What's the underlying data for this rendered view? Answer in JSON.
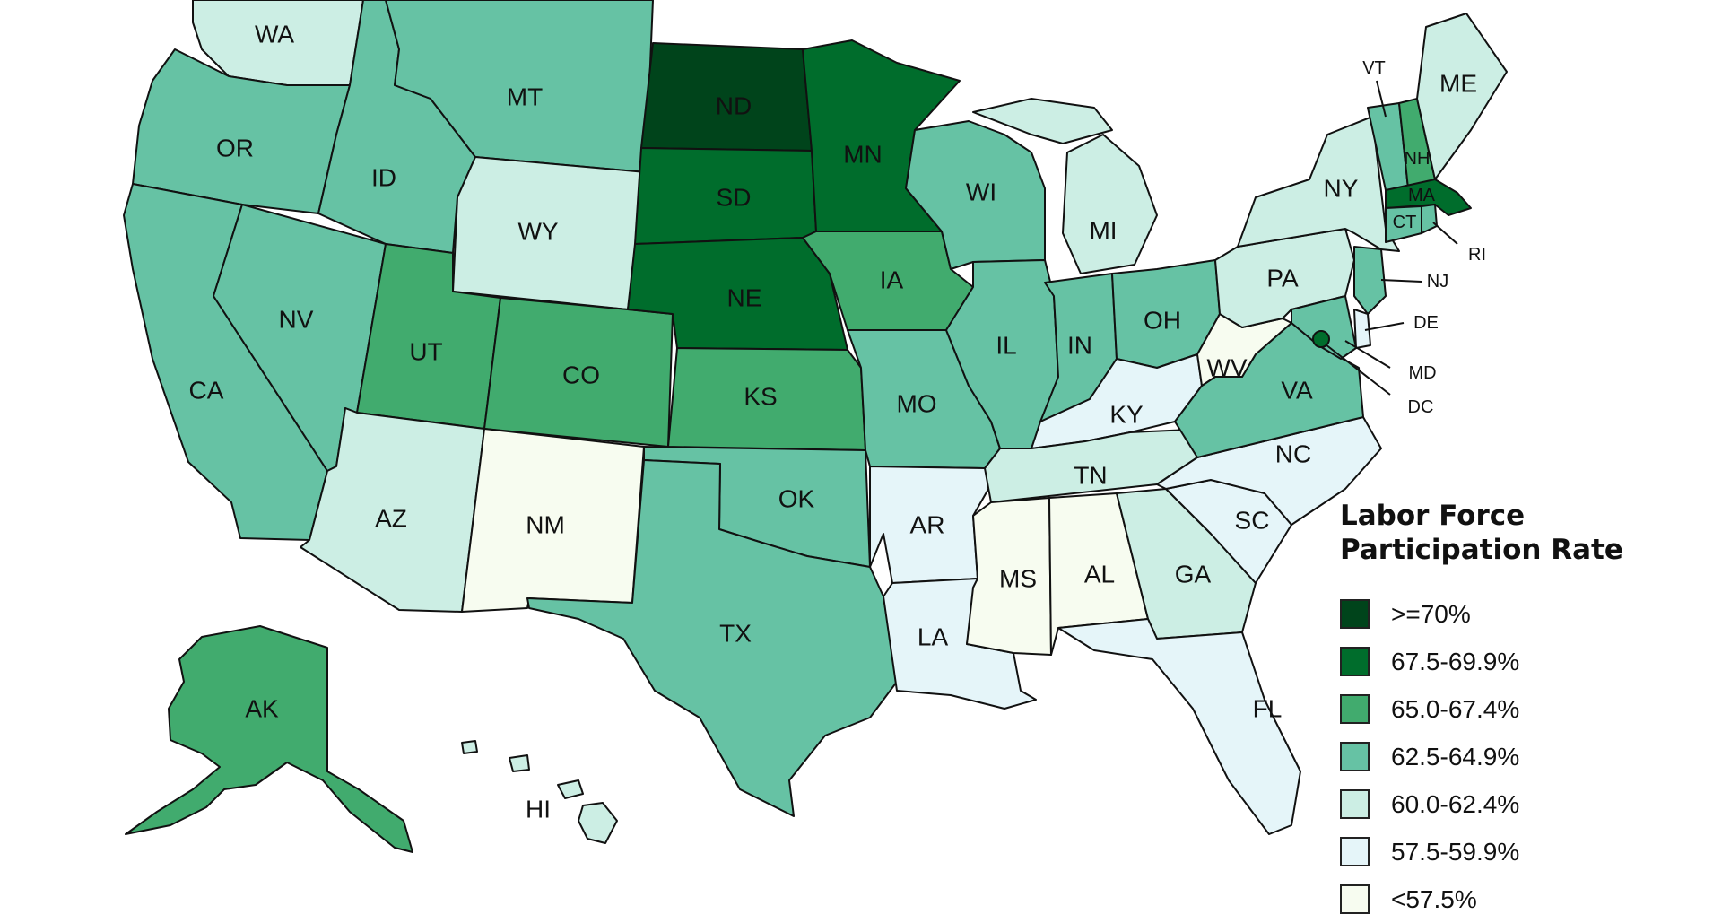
{
  "colors": {
    "ge70": "#00441b",
    "r675": "#006d2c",
    "r650": "#41ab6e",
    "r625": "#66c2a4",
    "r600": "#cceee4",
    "r575": "#e5f5f9",
    "lt575": "#f7fcf0"
  },
  "legend": {
    "title_line1": "Labor Force",
    "title_line2": "Participation Rate",
    "items": [
      {
        "label": ">=70%",
        "color_key": "ge70"
      },
      {
        "label": "67.5-69.9%",
        "color_key": "r675"
      },
      {
        "label": "65.0-67.4%",
        "color_key": "r650"
      },
      {
        "label": "62.5-64.9%",
        "color_key": "r625"
      },
      {
        "label": "60.0-62.4%",
        "color_key": "r600"
      },
      {
        "label": "57.5-59.9%",
        "color_key": "r575"
      },
      {
        "label": "<57.5%",
        "color_key": "lt575"
      }
    ]
  },
  "states": {
    "WA": {
      "label": "WA",
      "bin": "r600"
    },
    "OR": {
      "label": "OR",
      "bin": "r625"
    },
    "CA": {
      "label": "CA",
      "bin": "r625"
    },
    "ID": {
      "label": "ID",
      "bin": "r625"
    },
    "NV": {
      "label": "NV",
      "bin": "r625"
    },
    "MT": {
      "label": "MT",
      "bin": "r625"
    },
    "WY": {
      "label": "WY",
      "bin": "r600"
    },
    "UT": {
      "label": "UT",
      "bin": "r650"
    },
    "CO": {
      "label": "CO",
      "bin": "r650"
    },
    "AZ": {
      "label": "AZ",
      "bin": "r600"
    },
    "NM": {
      "label": "NM",
      "bin": "lt575"
    },
    "ND": {
      "label": "ND",
      "bin": "ge70"
    },
    "SD": {
      "label": "SD",
      "bin": "r675"
    },
    "NE": {
      "label": "NE",
      "bin": "r675"
    },
    "KS": {
      "label": "KS",
      "bin": "r650"
    },
    "OK": {
      "label": "OK",
      "bin": "r625"
    },
    "TX": {
      "label": "TX",
      "bin": "r625"
    },
    "MN": {
      "label": "MN",
      "bin": "r675"
    },
    "IA": {
      "label": "IA",
      "bin": "r650"
    },
    "MO": {
      "label": "MO",
      "bin": "r625"
    },
    "AR": {
      "label": "AR",
      "bin": "r575"
    },
    "LA": {
      "label": "LA",
      "bin": "r575"
    },
    "WI": {
      "label": "WI",
      "bin": "r625"
    },
    "IL": {
      "label": "IL",
      "bin": "r625"
    },
    "MI": {
      "label": "MI",
      "bin": "r600"
    },
    "IN": {
      "label": "IN",
      "bin": "r625"
    },
    "OH": {
      "label": "OH",
      "bin": "r625"
    },
    "KY": {
      "label": "KY",
      "bin": "r575"
    },
    "TN": {
      "label": "TN",
      "bin": "r600"
    },
    "MS": {
      "label": "MS",
      "bin": "lt575"
    },
    "AL": {
      "label": "AL",
      "bin": "lt575"
    },
    "GA": {
      "label": "GA",
      "bin": "r600"
    },
    "FL": {
      "label": "FL",
      "bin": "r575"
    },
    "SC": {
      "label": "SC",
      "bin": "r575"
    },
    "NC": {
      "label": "NC",
      "bin": "r575"
    },
    "VA": {
      "label": "VA",
      "bin": "r625"
    },
    "WV": {
      "label": "WV",
      "bin": "lt575"
    },
    "PA": {
      "label": "PA",
      "bin": "r600"
    },
    "NY": {
      "label": "NY",
      "bin": "r600"
    },
    "VT": {
      "label": "VT",
      "bin": "r625"
    },
    "NH": {
      "label": "NH",
      "bin": "r650"
    },
    "ME": {
      "label": "ME",
      "bin": "r600"
    },
    "MA": {
      "label": "MA",
      "bin": "r675"
    },
    "RI": {
      "label": "RI",
      "bin": "r625"
    },
    "CT": {
      "label": "CT",
      "bin": "r625"
    },
    "NJ": {
      "label": "NJ",
      "bin": "r625"
    },
    "DE": {
      "label": "DE",
      "bin": "r575"
    },
    "MD": {
      "label": "MD",
      "bin": "r625"
    },
    "DC": {
      "label": "DC",
      "bin": "r675"
    },
    "AK": {
      "label": "AK",
      "bin": "r650"
    },
    "HI": {
      "label": "HI",
      "bin": "r600"
    }
  }
}
